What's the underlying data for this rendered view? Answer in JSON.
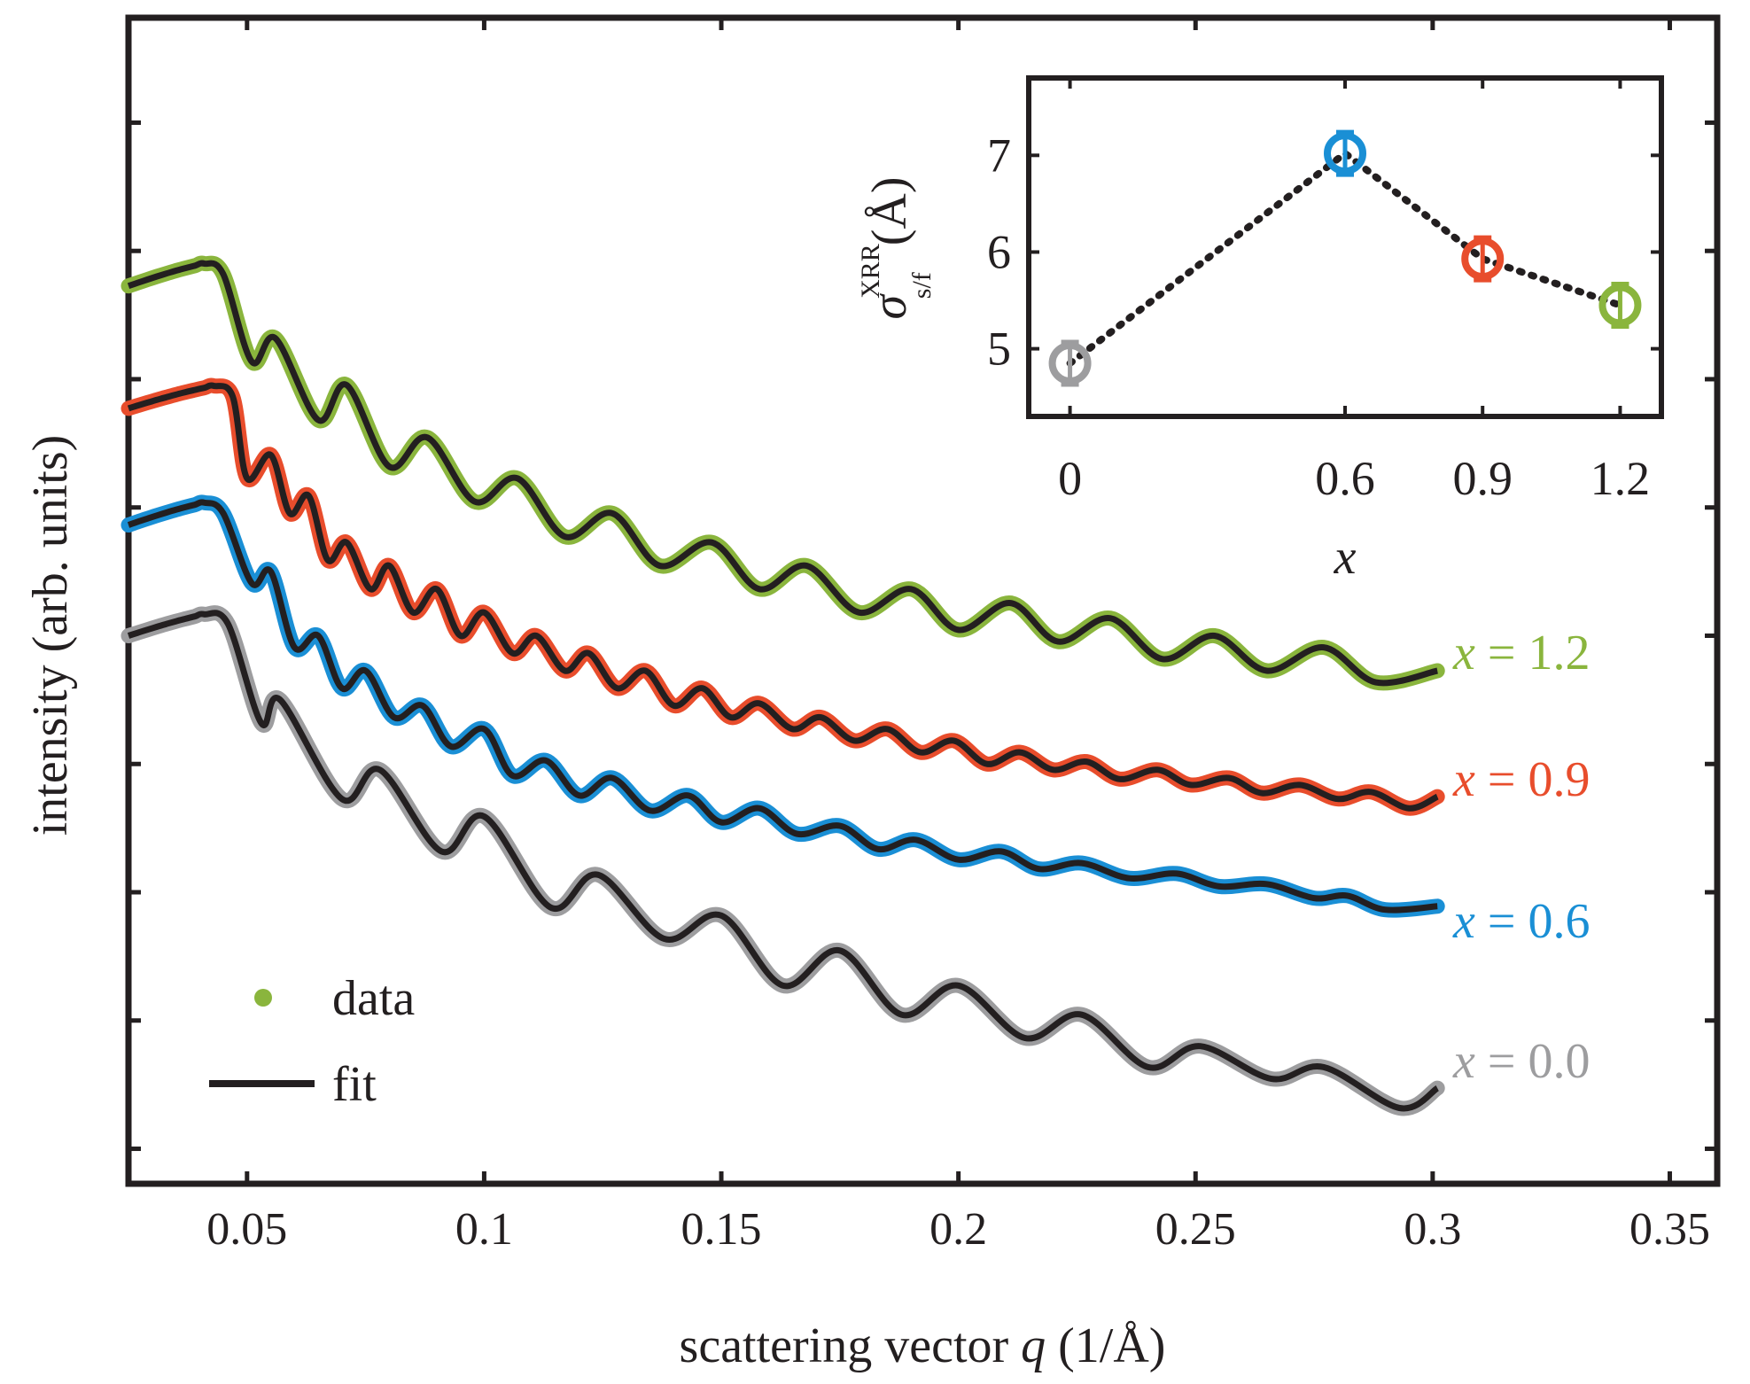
{
  "chart_data": {
    "type": "line",
    "main": {
      "xlabel_prefix": "scattering vector ",
      "xlabel_var": "q",
      "xlabel_unit": " (1/Å)",
      "ylabel": "intensity (arb. units)",
      "xlim": [
        0.025,
        0.36
      ],
      "ylim": [
        0,
        1
      ],
      "x_ticks": [
        0.05,
        0.1,
        0.15,
        0.2,
        0.25,
        0.3,
        0.35
      ],
      "x_tick_labels": [
        "0.05",
        "0.1",
        "0.15",
        "0.2",
        "0.25",
        "0.3",
        "0.35"
      ],
      "y_ticks": [
        0.03,
        0.14,
        0.25,
        0.36,
        0.47,
        0.58,
        0.69,
        0.8,
        0.91
      ],
      "y_tick_labels": [],
      "legend": {
        "position": "bottom-left",
        "entries": [
          {
            "label": "data",
            "marker": "dot",
            "color": "#8ab53d"
          },
          {
            "label": "fit",
            "marker": "line",
            "color": "#231f20"
          }
        ]
      },
      "fit_color": "#231f20",
      "series": [
        {
          "name": "x = 0.0",
          "label_var": "x",
          "label_rest": " = 0.0",
          "color": "#9d9d9f",
          "plateau": 0.49,
          "plateau_x": [
            0.025,
            0.043
          ],
          "drop_start": 0.046,
          "dips_q": [
            0.053,
            0.07,
            0.091,
            0.114,
            0.138,
            0.163,
            0.188,
            0.214,
            0.24,
            0.266,
            0.293
          ],
          "dips_y": [
            0.395,
            0.33,
            0.285,
            0.237,
            0.21,
            0.17,
            0.145,
            0.125,
            0.1,
            0.09,
            0.065
          ],
          "peaks_q": [
            0.057,
            0.078,
            0.1,
            0.124,
            0.15,
            0.175,
            0.2,
            0.226,
            0.251,
            0.277
          ],
          "peaks_y": [
            0.415,
            0.355,
            0.315,
            0.265,
            0.23,
            0.2,
            0.17,
            0.145,
            0.118,
            0.1
          ],
          "end": [
            0.301,
            0.082
          ]
        },
        {
          "name": "x = 0.6",
          "label_var": "x",
          "label_rest": " = 0.6",
          "color": "#1a8fd5",
          "plateau": 0.585,
          "plateau_x": [
            0.025,
            0.042
          ],
          "drop_start": 0.045,
          "dips_q": [
            0.051,
            0.06,
            0.07,
            0.081,
            0.093,
            0.106,
            0.12,
            0.135,
            0.15,
            0.166,
            0.183,
            0.2,
            0.217,
            0.236,
            0.255,
            0.275,
            0.29
          ],
          "dips_y": [
            0.515,
            0.46,
            0.425,
            0.4,
            0.375,
            0.35,
            0.333,
            0.32,
            0.31,
            0.3,
            0.287,
            0.278,
            0.27,
            0.262,
            0.255,
            0.245,
            0.235
          ],
          "peaks_q": [
            0.055,
            0.065,
            0.075,
            0.087,
            0.1,
            0.113,
            0.127,
            0.143,
            0.158,
            0.175,
            0.191,
            0.209,
            0.226,
            0.246,
            0.265,
            0.282
          ],
          "peaks_y": [
            0.525,
            0.47,
            0.44,
            0.41,
            0.39,
            0.363,
            0.348,
            0.333,
            0.322,
            0.307,
            0.295,
            0.285,
            0.275,
            0.266,
            0.257,
            0.247
          ],
          "end": [
            0.301,
            0.238
          ]
        },
        {
          "name": "x = 0.9",
          "label_var": "x",
          "label_rest": " = 0.9",
          "color": "#e84d2c",
          "plateau": 0.685,
          "plateau_x": [
            0.025,
            0.044
          ],
          "drop_start": 0.047,
          "dips_q": [
            0.05,
            0.059,
            0.067,
            0.076,
            0.085,
            0.095,
            0.106,
            0.117,
            0.128,
            0.14,
            0.152,
            0.165,
            0.178,
            0.192,
            0.206,
            0.22,
            0.234,
            0.249,
            0.264,
            0.28,
            0.295
          ],
          "dips_y": [
            0.605,
            0.575,
            0.535,
            0.51,
            0.49,
            0.47,
            0.455,
            0.44,
            0.425,
            0.41,
            0.4,
            0.39,
            0.38,
            0.37,
            0.36,
            0.355,
            0.347,
            0.342,
            0.335,
            0.33,
            0.322
          ],
          "peaks_q": [
            0.055,
            0.063,
            0.071,
            0.08,
            0.09,
            0.1,
            0.111,
            0.122,
            0.134,
            0.146,
            0.158,
            0.171,
            0.185,
            0.199,
            0.213,
            0.227,
            0.242,
            0.257,
            0.272,
            0.287
          ],
          "peaks_y": [
            0.625,
            0.59,
            0.55,
            0.53,
            0.51,
            0.49,
            0.47,
            0.455,
            0.44,
            0.425,
            0.412,
            0.4,
            0.39,
            0.38,
            0.37,
            0.362,
            0.355,
            0.348,
            0.342,
            0.336
          ],
          "end": [
            0.301,
            0.332
          ]
        },
        {
          "name": "x = 1.2",
          "label_var": "x",
          "label_rest": " = 1.2",
          "color": "#8ab53d",
          "plateau": 0.79,
          "plateau_x": [
            0.025,
            0.042
          ],
          "drop_start": 0.045,
          "dips_q": [
            0.051,
            0.065,
            0.08,
            0.098,
            0.117,
            0.137,
            0.158,
            0.179,
            0.2,
            0.221,
            0.243,
            0.265,
            0.288
          ],
          "dips_y": [
            0.705,
            0.655,
            0.615,
            0.585,
            0.555,
            0.53,
            0.51,
            0.49,
            0.475,
            0.465,
            0.45,
            0.44,
            0.43
          ],
          "peaks_q": [
            0.056,
            0.071,
            0.088,
            0.107,
            0.127,
            0.148,
            0.168,
            0.19,
            0.211,
            0.232,
            0.254,
            0.277
          ],
          "peaks_y": [
            0.725,
            0.685,
            0.64,
            0.605,
            0.575,
            0.55,
            0.53,
            0.51,
            0.498,
            0.485,
            0.47,
            0.46
          ],
          "end": [
            0.301,
            0.44
          ]
        }
      ]
    },
    "inset": {
      "type": "scatter",
      "ylabel_symbol": "σ",
      "ylabel_super": "XRR",
      "ylabel_sub": "s/f",
      "ylabel_unit": "(Å)",
      "xlabel": "x",
      "categories": [
        "0",
        "0.6",
        "0.9",
        "1.2"
      ],
      "x_positions": [
        0,
        2,
        3,
        4
      ],
      "values": [
        4.85,
        7.02,
        5.93,
        5.45
      ],
      "errors": [
        0.22,
        0.22,
        0.22,
        0.22
      ],
      "colors": [
        "#9d9d9f",
        "#1a8fd5",
        "#e84d2c",
        "#8ab53d"
      ],
      "connector": "dotted",
      "ylim": [
        4.3,
        7.8
      ],
      "y_ticks": [
        5,
        6,
        7
      ],
      "y_tick_labels": [
        "5",
        "6",
        "7"
      ],
      "xlim": [
        -0.3,
        4.3
      ]
    }
  }
}
